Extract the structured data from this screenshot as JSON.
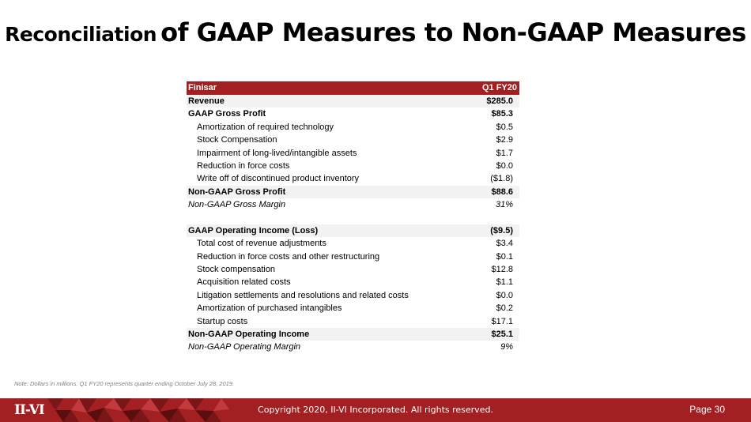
{
  "title": {
    "part1": "Reconciliation",
    "part2": "of GAAP Measures to Non-GAAP Measures"
  },
  "table": {
    "header": {
      "label": "Finisar",
      "value": "Q1 FY20"
    },
    "rows": [
      {
        "label": "Revenue",
        "value": "$285.0",
        "style": "bold shade"
      },
      {
        "label": "GAAP Gross Profit",
        "value": "$85.3",
        "style": "bold"
      },
      {
        "label": "Amortization of required technology",
        "value": "$0.5",
        "style": "indent"
      },
      {
        "label": "Stock Compensation",
        "value": "$2.9",
        "style": "indent"
      },
      {
        "label": "Impairment of long-lived/intangible assets",
        "value": "$1.7",
        "style": "indent"
      },
      {
        "label": "Reduction in force costs",
        "value": "$0.0",
        "style": "indent"
      },
      {
        "label": "Write off of discontinued product inventory",
        "value": "($1.8)",
        "style": "indent"
      },
      {
        "label": "Non-GAAP Gross Profit",
        "value": "$88.6",
        "style": "bold shade"
      },
      {
        "label": "Non-GAAP Gross Margin",
        "value": "31%",
        "style": "italic"
      },
      {
        "label": "",
        "value": "",
        "style": "spacer"
      },
      {
        "label": "GAAP Operating Income (Loss)",
        "value": "($9.5)",
        "style": "bold shade"
      },
      {
        "label": "Total cost of revenue adjustments",
        "value": "$3.4",
        "style": "indent"
      },
      {
        "label": "Reduction in force costs and other restructuring",
        "value": "$0.1",
        "style": "indent"
      },
      {
        "label": "Stock compensation",
        "value": "$12.8",
        "style": "indent"
      },
      {
        "label": "Acquisition related costs",
        "value": "$1.1",
        "style": "indent"
      },
      {
        "label": "Litigation settlements and resolutions and related costs",
        "value": "$0.0",
        "style": "indent"
      },
      {
        "label": "Amortization of purchased intangibles",
        "value": "$0.2",
        "style": "indent"
      },
      {
        "label": "Startup costs",
        "value": "$17.1",
        "style": "indent"
      },
      {
        "label": "Non-GAAP Operating Income",
        "value": "$25.1",
        "style": "bold shade"
      },
      {
        "label": "Non-GAAP Operating Margin",
        "value": "9%",
        "style": "italic"
      }
    ]
  },
  "note": "Note: Dollars in millions. Q1 FY20 represents quarter ending October July 28, 2019.",
  "footer": {
    "logo": "II-VI",
    "copyright": "Copyright 2020, II-VI Incorporated. All rights reserved.",
    "page": "Page 30"
  },
  "colors": {
    "brand_red": "#a21f22",
    "row_shade": "#f2f2f2",
    "note_gray": "#7f7f7f"
  }
}
